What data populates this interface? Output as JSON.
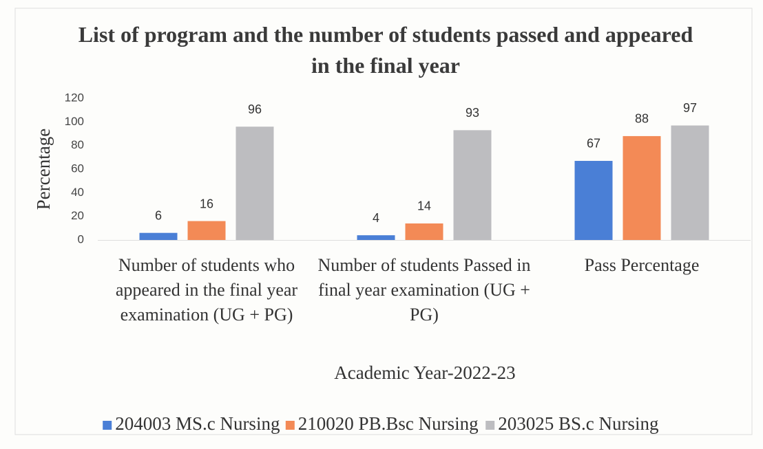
{
  "chart_data": {
    "type": "bar",
    "title": "List of program and the number of students passed and appeared in the final year",
    "y_label": "Percentage",
    "x_label": "Academic Year-2022-23",
    "categories": [
      "Number of students who appeared in the final year examination (UG + PG)",
      "Number of students Passed in final year examination (UG + PG)",
      "Pass Percentage"
    ],
    "series": [
      {
        "name": "204003 MS.c Nursing",
        "color": "#4a7fd6",
        "values": [
          6,
          4,
          67
        ]
      },
      {
        "name": "210020 PB.Bsc Nursing",
        "color": "#f38a56",
        "values": [
          16,
          14,
          88
        ]
      },
      {
        "name": "203025 BS.c Nursing",
        "color": "#bdbdc0",
        "values": [
          96,
          93,
          97
        ]
      }
    ],
    "ylim": [
      0,
      120
    ],
    "yticks": [
      0,
      20,
      40,
      60,
      80,
      100,
      120
    ],
    "grid": false,
    "legend": "bottom"
  }
}
